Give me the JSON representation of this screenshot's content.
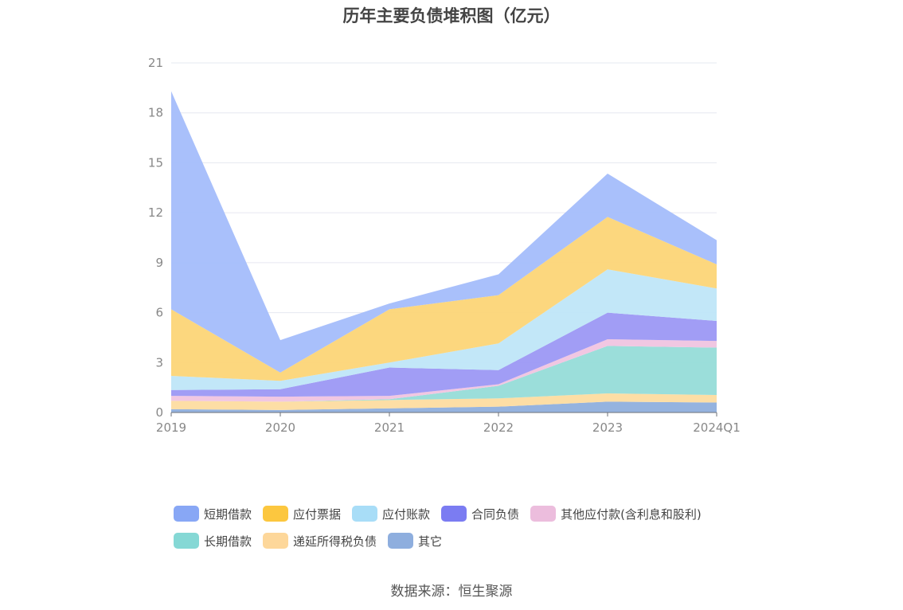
{
  "chart_data": {
    "type": "area",
    "stacked": true,
    "title": "历年主要负债堆积图（亿元）",
    "categories": [
      "2019",
      "2020",
      "2021",
      "2022",
      "2023",
      "2024Q1"
    ],
    "ylim": [
      0,
      21
    ],
    "yticks": [
      0,
      3,
      6,
      9,
      12,
      15,
      18,
      21
    ],
    "series": [
      {
        "name": "其它",
        "color": "#8fafdd",
        "values": [
          0.2,
          0.15,
          0.25,
          0.35,
          0.65,
          0.6
        ]
      },
      {
        "name": "递延所得税负债",
        "color": "#fddca0",
        "values": [
          0.5,
          0.5,
          0.5,
          0.5,
          0.5,
          0.45
        ]
      },
      {
        "name": "长期借款",
        "color": "#96dcd8",
        "values": [
          0.0,
          0.0,
          0.05,
          0.75,
          2.85,
          2.85
        ]
      },
      {
        "name": "其他应付款(含利息和股利)",
        "color": "#f0c4e0",
        "values": [
          0.3,
          0.3,
          0.2,
          0.1,
          0.4,
          0.4
        ]
      },
      {
        "name": "合同负债",
        "color": "#9c98f4",
        "values": [
          0.35,
          0.45,
          1.7,
          0.85,
          1.6,
          1.2
        ]
      },
      {
        "name": "应付账款",
        "color": "#bfe6f8",
        "values": [
          0.85,
          0.5,
          0.3,
          1.6,
          2.6,
          1.95
        ]
      },
      {
        "name": "应付票据",
        "color": "#fcd577",
        "values": [
          4.0,
          0.5,
          3.2,
          2.9,
          3.15,
          1.45
        ]
      },
      {
        "name": "短期借款",
        "color": "#a4bdfb",
        "values": [
          13.1,
          1.95,
          0.35,
          1.25,
          2.6,
          1.45
        ]
      }
    ]
  },
  "legend": {
    "row1": [
      {
        "name": "短期借款",
        "color": "#88a7f5"
      },
      {
        "name": "应付票据",
        "color": "#fcc73f"
      },
      {
        "name": "应付账款",
        "color": "#a8ddf7"
      },
      {
        "name": "合同负债",
        "color": "#7b7cf2"
      },
      {
        "name": "其他应付款(含利息和股利)",
        "color": "#ecbddd"
      }
    ],
    "row2": [
      {
        "name": "长期借款",
        "color": "#85d8d5"
      },
      {
        "name": "递延所得税负债",
        "color": "#fdd79a"
      },
      {
        "name": "其它",
        "color": "#8eaede"
      }
    ]
  },
  "source": "数据来源：恒生聚源"
}
